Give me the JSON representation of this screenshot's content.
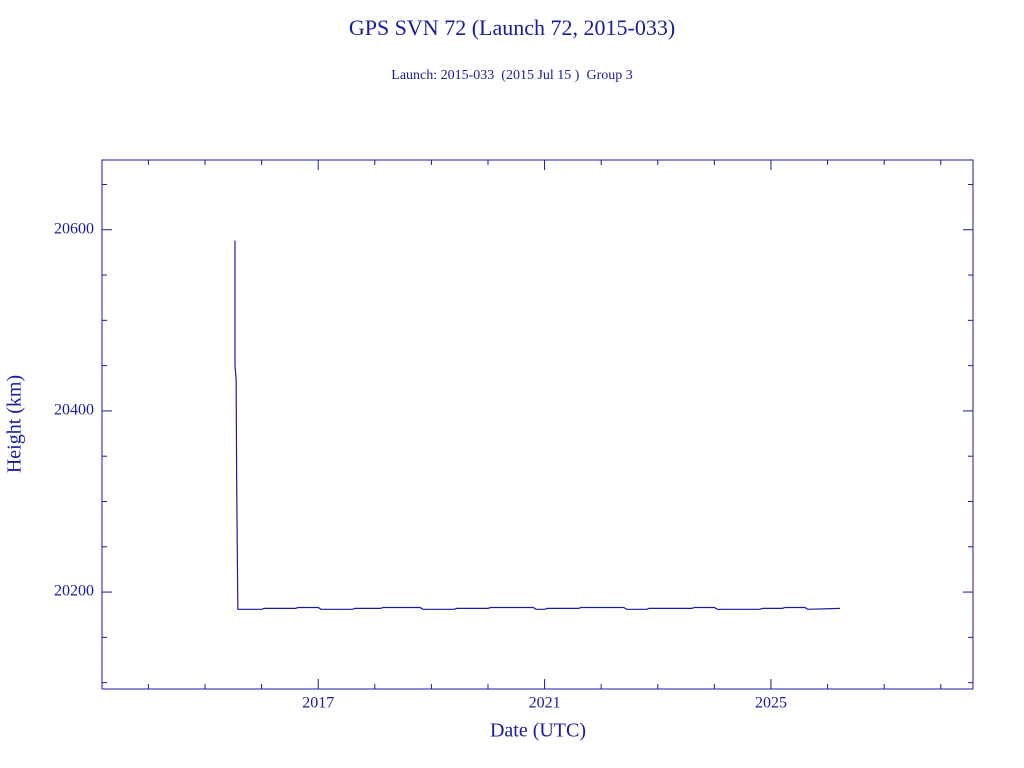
{
  "chart_data": {
    "type": "line",
    "title": "GPS SVN 72 (Launch 72, 2015-033)",
    "subtitle": "Launch: 2015-033  (2015 Jul 15 )  Group 3",
    "x_label": "Date (UTC)",
    "y_label": "Height (km)",
    "color": "#1a1a9c",
    "x": [
      2015.53,
      2015.53,
      2015.55,
      2015.56,
      2015.58,
      2016.0,
      2016.05,
      2016.6,
      2016.65,
      2017.0,
      2017.05,
      2017.6,
      2017.65,
      2018.1,
      2018.15,
      2018.8,
      2018.85,
      2019.4,
      2019.45,
      2020.0,
      2020.05,
      2020.8,
      2020.85,
      2021.0,
      2021.05,
      2021.6,
      2021.65,
      2022.4,
      2022.45,
      2022.8,
      2022.85,
      2023.6,
      2023.65,
      2024.0,
      2024.05,
      2024.8,
      2024.85,
      2025.2,
      2025.25,
      2025.6,
      2025.65,
      2026.22
    ],
    "values": [
      20588,
      20450,
      20435,
      20318,
      20181,
      20181,
      20182,
      20182,
      20183,
      20183,
      20181,
      20181,
      20182,
      20182,
      20183,
      20183,
      20181,
      20181,
      20182,
      20182,
      20183,
      20183,
      20181,
      20181,
      20182,
      20182,
      20183,
      20183,
      20181,
      20181,
      20182,
      20182,
      20183,
      20183,
      20181,
      20181,
      20182,
      20182,
      20183,
      20183,
      20181,
      20182
    ],
    "xlim": [
      2013.18,
      2028.57
    ],
    "ylim": [
      20093,
      20677
    ],
    "xticks": [
      2017,
      2021,
      2025
    ],
    "xminorticks": [
      2014,
      2015,
      2016,
      2018,
      2019,
      2020,
      2022,
      2023,
      2024,
      2026,
      2027,
      2028
    ],
    "yticks": [
      20200,
      20400,
      20600
    ],
    "yminorticks": [
      20100,
      20150,
      20250,
      20300,
      20350,
      20450,
      20500,
      20550,
      20650
    ]
  }
}
